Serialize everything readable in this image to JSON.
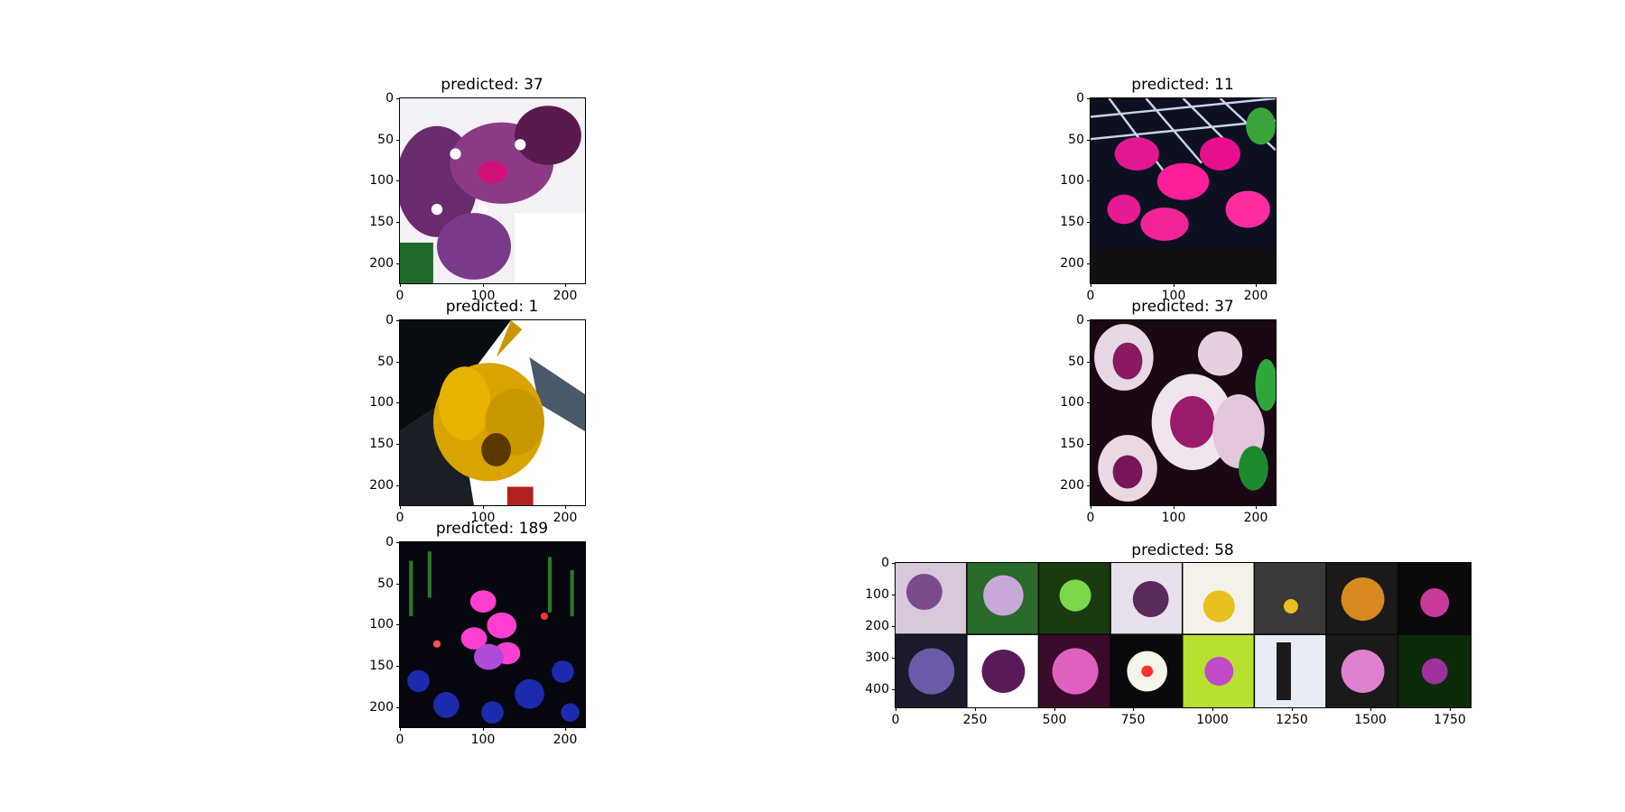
{
  "panels": [
    {
      "id": "p1",
      "title": "predicted: 37",
      "yticks": [
        "0",
        "50",
        "100",
        "150",
        "200"
      ],
      "xticks": [
        "0",
        "100",
        "200"
      ],
      "image": "purple-spotted-orchid-photo"
    },
    {
      "id": "p2",
      "title": "predicted: 11",
      "yticks": [
        "0",
        "50",
        "100",
        "150",
        "200"
      ],
      "xticks": [
        "0",
        "100",
        "200"
      ],
      "image": "magenta-orchids-photo"
    },
    {
      "id": "p3",
      "title": "predicted: 1",
      "yticks": [
        "0",
        "50",
        "100",
        "150",
        "200"
      ],
      "xticks": [
        "0",
        "100",
        "200"
      ],
      "image": "yellow-orchid-photo"
    },
    {
      "id": "p4",
      "title": "predicted: 37",
      "yticks": [
        "0",
        "50",
        "100",
        "150",
        "200"
      ],
      "xticks": [
        "0",
        "100",
        "200"
      ],
      "image": "white-purple-spotted-orchid-photo"
    },
    {
      "id": "p5",
      "title": "predicted: 189",
      "yticks": [
        "0",
        "50",
        "100",
        "150",
        "200"
      ],
      "xticks": [
        "0",
        "100",
        "200"
      ],
      "image": "pink-orchids-in-garden-photo"
    },
    {
      "id": "p6",
      "title": "predicted: 58",
      "yticks": [
        "0",
        "100",
        "200",
        "300",
        "400"
      ],
      "xticks": [
        "0",
        "250",
        "500",
        "750",
        "1000",
        "1250",
        "1500",
        "1750"
      ],
      "image": "orchid-image-grid-photo"
    }
  ]
}
